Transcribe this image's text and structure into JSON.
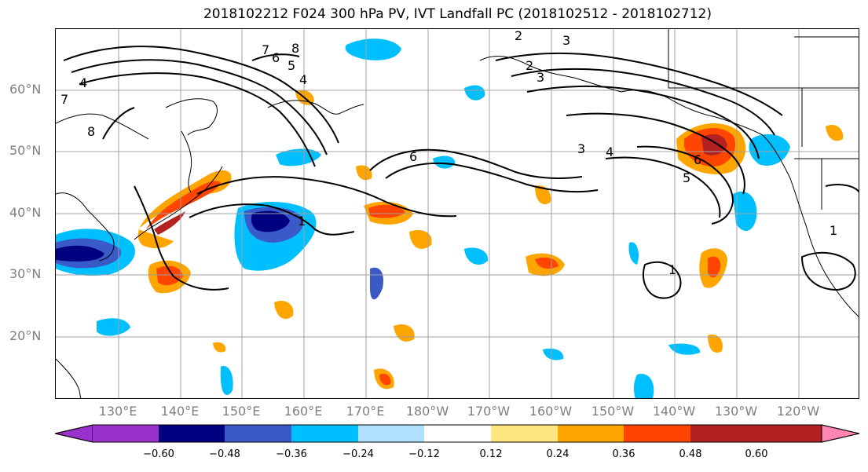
{
  "title": "2018102212 F024 300 hPa PV, IVT Landfall PC (2018102512 - 2018102712)",
  "lat_labels": [
    "60°N",
    "50°N",
    "40°N",
    "30°N",
    "20°N"
  ],
  "lon_labels": [
    "130°E",
    "140°E",
    "150°E",
    "160°E",
    "170°E",
    "180°W",
    "170°W",
    "160°W",
    "150°W",
    "140°W",
    "130°W",
    "120°W"
  ],
  "contour_labels": [
    "8",
    "7",
    "6",
    "5",
    "4",
    "3",
    "2",
    "1",
    "6",
    "3",
    "4",
    "5",
    "6",
    "8",
    "7",
    "4",
    "1",
    "1",
    "3",
    "2"
  ],
  "colorbar": {
    "tick_labels": [
      "−0.60",
      "−0.48",
      "−0.36",
      "−0.24",
      "−0.12",
      "0.12",
      "0.24",
      "0.36",
      "0.48",
      "0.60"
    ],
    "colors": [
      "#9932cc",
      "#000080",
      "#3a5bc7",
      "#00bfff",
      "#b0e0ff",
      "#ffffff",
      "#ffe680",
      "#ffa500",
      "#ff4500",
      "#b22222",
      "#ff85b4"
    ]
  }
}
